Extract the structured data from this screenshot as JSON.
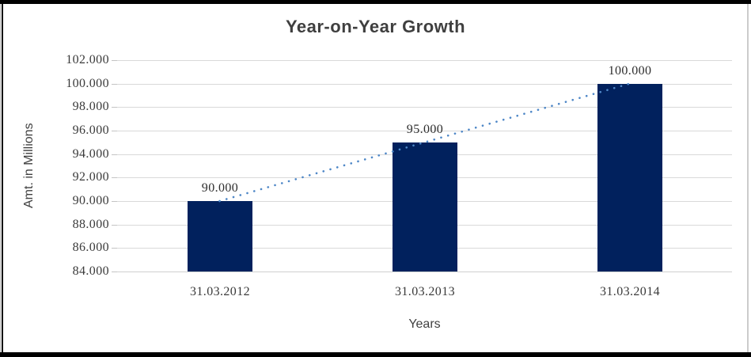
{
  "frame": {
    "background": "#FFFFFF",
    "border_color": "#000000",
    "right_border_color": "#CCCCCC"
  },
  "chart_data": {
    "type": "bar",
    "title": "Year-on-Year Growth",
    "categories": [
      "31.03.2012",
      "31.03.2013",
      "31.03.2014"
    ],
    "values": [
      90000,
      95000,
      100000
    ],
    "value_labels": [
      "90.000",
      "95.000",
      "100.000"
    ],
    "xlabel": "Years",
    "ylabel": "Amt. in Millions",
    "ylim": [
      84000,
      102000
    ],
    "y_tick_step": 2000,
    "y_tick_labels": [
      "84.000",
      "86.000",
      "88.000",
      "90.000",
      "92.000",
      "94.000",
      "96.000",
      "98.000",
      "100.000",
      "102.000"
    ],
    "grid": true,
    "legend": "none",
    "bar_color": "#01215D",
    "gridline_color": "#D9D9D9",
    "axis_line_color": "#CFCFCF",
    "title_color": "#3F3F3F",
    "text_color": "#3A3A3A",
    "trendline": {
      "type": "linear",
      "style": "dotted",
      "color": "#4E87C7",
      "points": [
        90000,
        95000,
        100000
      ]
    }
  }
}
